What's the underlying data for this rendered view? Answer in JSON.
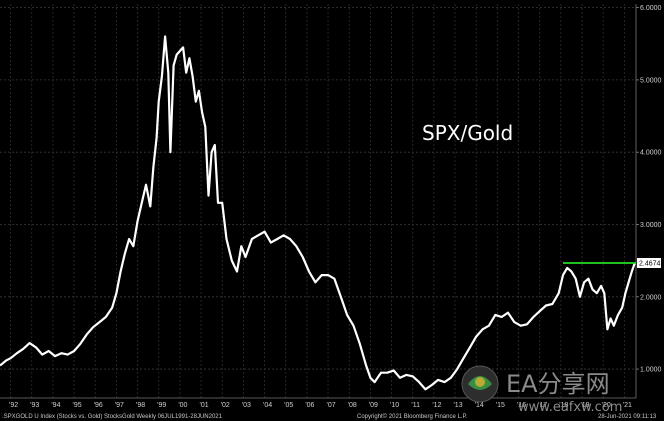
{
  "chart_data": {
    "type": "line",
    "title": "SPX/Gold",
    "xlabel": "",
    "ylabel": "",
    "x_tick_labels": [
      "'92",
      "'93",
      "'94",
      "'95",
      "'96",
      "'97",
      "'98",
      "'99",
      "'00",
      "'01",
      "'02",
      "'03",
      "'04",
      "'05",
      "'06",
      "'07",
      "'08",
      "'09",
      "'10",
      "'11",
      "'12",
      "'13",
      "'14",
      "'15",
      "'16",
      "'17",
      "'18",
      "'19",
      "'20",
      "'21"
    ],
    "y_tick_labels": [
      "1.0000",
      "2.0000",
      "3.0000",
      "4.0000",
      "5.0000",
      "6.0000"
    ],
    "ylim": [
      0.6,
      6.05
    ],
    "xlim": [
      1991.5,
      2021.55
    ],
    "grid": true,
    "last_value_label": "2.4674",
    "reference_line": {
      "value": 2.4674,
      "from_year": 2018.1,
      "to_year": 2021.5,
      "color": "#22dd22"
    },
    "series": [
      {
        "color": "#ffffff",
        "points": [
          [
            1991.5,
            1.05
          ],
          [
            1991.8,
            1.12
          ],
          [
            1992.0,
            1.15
          ],
          [
            1992.3,
            1.22
          ],
          [
            1992.6,
            1.28
          ],
          [
            1992.9,
            1.36
          ],
          [
            1993.2,
            1.3
          ],
          [
            1993.5,
            1.2
          ],
          [
            1993.8,
            1.25
          ],
          [
            1994.1,
            1.18
          ],
          [
            1994.4,
            1.22
          ],
          [
            1994.7,
            1.2
          ],
          [
            1995.0,
            1.25
          ],
          [
            1995.3,
            1.35
          ],
          [
            1995.6,
            1.48
          ],
          [
            1995.9,
            1.58
          ],
          [
            1996.2,
            1.65
          ],
          [
            1996.5,
            1.72
          ],
          [
            1996.8,
            1.85
          ],
          [
            1997.0,
            2.05
          ],
          [
            1997.2,
            2.35
          ],
          [
            1997.4,
            2.6
          ],
          [
            1997.6,
            2.8
          ],
          [
            1997.8,
            2.7
          ],
          [
            1998.0,
            3.05
          ],
          [
            1998.2,
            3.3
          ],
          [
            1998.4,
            3.55
          ],
          [
            1998.6,
            3.25
          ],
          [
            1998.75,
            3.8
          ],
          [
            1998.9,
            4.2
          ],
          [
            1999.0,
            4.7
          ],
          [
            1999.15,
            5.05
          ],
          [
            1999.3,
            5.6
          ],
          [
            1999.45,
            5.1
          ],
          [
            1999.55,
            4.0
          ],
          [
            1999.7,
            5.2
          ],
          [
            1999.85,
            5.35
          ],
          [
            2000.0,
            5.4
          ],
          [
            2000.15,
            5.45
          ],
          [
            2000.3,
            5.1
          ],
          [
            2000.45,
            5.3
          ],
          [
            2000.6,
            5.05
          ],
          [
            2000.75,
            4.7
          ],
          [
            2000.9,
            4.85
          ],
          [
            2001.05,
            4.55
          ],
          [
            2001.2,
            4.35
          ],
          [
            2001.35,
            3.4
          ],
          [
            2001.5,
            4.0
          ],
          [
            2001.65,
            4.1
          ],
          [
            2001.8,
            3.3
          ],
          [
            2002.0,
            3.3
          ],
          [
            2002.2,
            2.8
          ],
          [
            2002.45,
            2.5
          ],
          [
            2002.7,
            2.35
          ],
          [
            2002.9,
            2.7
          ],
          [
            2003.1,
            2.55
          ],
          [
            2003.4,
            2.8
          ],
          [
            2003.7,
            2.85
          ],
          [
            2004.0,
            2.9
          ],
          [
            2004.3,
            2.75
          ],
          [
            2004.6,
            2.8
          ],
          [
            2004.9,
            2.85
          ],
          [
            2005.2,
            2.8
          ],
          [
            2005.5,
            2.7
          ],
          [
            2005.8,
            2.55
          ],
          [
            2006.1,
            2.35
          ],
          [
            2006.4,
            2.2
          ],
          [
            2006.7,
            2.3
          ],
          [
            2007.0,
            2.3
          ],
          [
            2007.3,
            2.25
          ],
          [
            2007.6,
            2.0
          ],
          [
            2007.9,
            1.75
          ],
          [
            2008.2,
            1.6
          ],
          [
            2008.5,
            1.35
          ],
          [
            2008.8,
            1.05
          ],
          [
            2009.0,
            0.88
          ],
          [
            2009.2,
            0.82
          ],
          [
            2009.5,
            0.95
          ],
          [
            2009.8,
            0.95
          ],
          [
            2010.1,
            0.98
          ],
          [
            2010.4,
            0.88
          ],
          [
            2010.7,
            0.92
          ],
          [
            2011.0,
            0.9
          ],
          [
            2011.3,
            0.82
          ],
          [
            2011.6,
            0.72
          ],
          [
            2011.9,
            0.78
          ],
          [
            2012.2,
            0.85
          ],
          [
            2012.5,
            0.82
          ],
          [
            2012.8,
            0.88
          ],
          [
            2013.1,
            1.0
          ],
          [
            2013.4,
            1.15
          ],
          [
            2013.7,
            1.3
          ],
          [
            2014.0,
            1.45
          ],
          [
            2014.3,
            1.55
          ],
          [
            2014.6,
            1.6
          ],
          [
            2014.9,
            1.75
          ],
          [
            2015.2,
            1.72
          ],
          [
            2015.5,
            1.78
          ],
          [
            2015.8,
            1.65
          ],
          [
            2016.1,
            1.6
          ],
          [
            2016.4,
            1.62
          ],
          [
            2016.7,
            1.72
          ],
          [
            2017.0,
            1.8
          ],
          [
            2017.3,
            1.88
          ],
          [
            2017.6,
            1.9
          ],
          [
            2017.9,
            2.05
          ],
          [
            2018.1,
            2.3
          ],
          [
            2018.3,
            2.4
          ],
          [
            2018.5,
            2.35
          ],
          [
            2018.7,
            2.25
          ],
          [
            2018.9,
            2.0
          ],
          [
            2019.1,
            2.2
          ],
          [
            2019.3,
            2.25
          ],
          [
            2019.5,
            2.1
          ],
          [
            2019.7,
            2.05
          ],
          [
            2019.9,
            2.15
          ],
          [
            2020.05,
            2.05
          ],
          [
            2020.2,
            1.55
          ],
          [
            2020.35,
            1.7
          ],
          [
            2020.5,
            1.6
          ],
          [
            2020.7,
            1.75
          ],
          [
            2020.9,
            1.85
          ],
          [
            2021.05,
            2.05
          ],
          [
            2021.2,
            2.2
          ],
          [
            2021.35,
            2.35
          ],
          [
            2021.5,
            2.47
          ]
        ]
      }
    ]
  },
  "footer": {
    "left": ".SPXGOLD U Index (Stocks vs. Gold) StocksGold  Weekly 06JUL1991-28JUN2021",
    "center": "Copyright© 2021 Bloomberg Finance L.P.",
    "right": "28-Jun-2021 09:11:13"
  },
  "watermark": {
    "brand": "EA分享网",
    "url": "www.eafxw.com"
  }
}
